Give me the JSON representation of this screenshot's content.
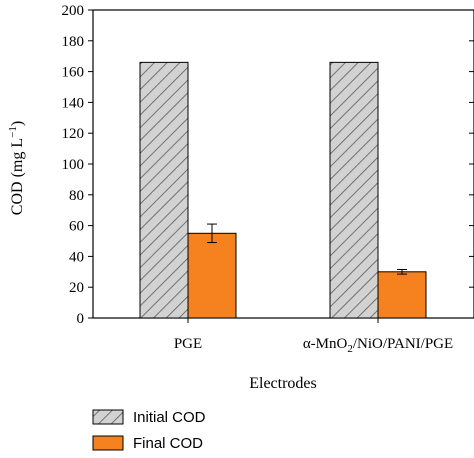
{
  "chart_data": {
    "type": "bar",
    "categories": [
      "PGE",
      "α-MnO₂/NiO/PANI/PGE"
    ],
    "series": [
      {
        "name": "Initial COD",
        "values": [
          166,
          166
        ],
        "errors": [
          0,
          0
        ],
        "color": "#c8c8c8",
        "pattern": "hatch"
      },
      {
        "name": "Final COD",
        "values": [
          55,
          30
        ],
        "errors": [
          6,
          1.5
        ],
        "color": "#f5821f",
        "pattern": "solid"
      }
    ],
    "title": "",
    "xlabel": "Electrodes",
    "ylabel_main": "COD (mg L",
    "ylabel_sup": "−1",
    "ylabel_end": ")",
    "cat_label_parts": [
      {
        "main": "PGE"
      },
      {
        "pre": "α-MnO",
        "sub": "2",
        "post": "/NiO/PANI/PGE"
      }
    ],
    "ylim": [
      0,
      200
    ],
    "yticks": [
      0,
      20,
      40,
      60,
      80,
      100,
      120,
      140,
      160,
      180,
      200
    ],
    "grid": false,
    "legend_position": "bottom-left"
  }
}
